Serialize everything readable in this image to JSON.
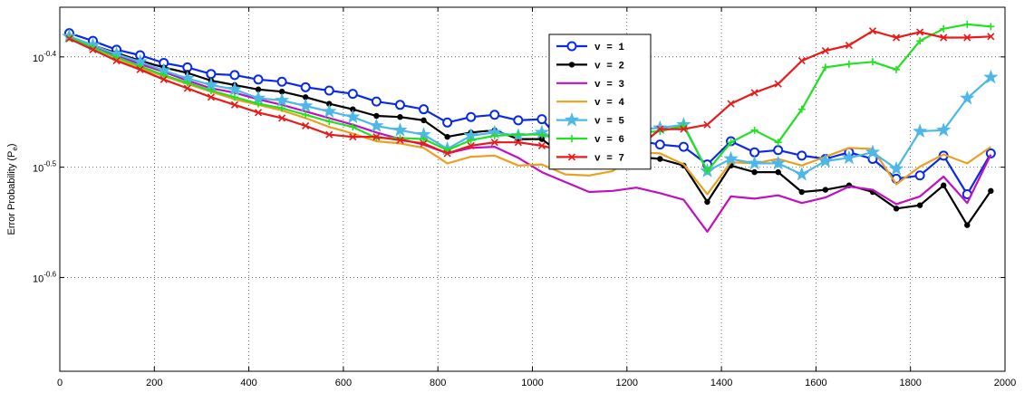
{
  "chart_data": {
    "type": "line",
    "title": "",
    "xlabel": "",
    "ylabel": "Error Probability (P",
    "ylabel_sub": "e",
    "ylabel_close": ")",
    "xlim": [
      0,
      2000
    ],
    "ylim_log10": [
      -0.685,
      -0.355
    ],
    "yscale": "log",
    "grid": true,
    "legend_position": "top-center",
    "x_ticks": [
      0,
      200,
      400,
      600,
      800,
      1000,
      1200,
      1400,
      1600,
      1800,
      2000
    ],
    "y_ticks": [
      {
        "base": "10",
        "exp": "-0.4",
        "log10": -0.4
      },
      {
        "base": "10",
        "exp": "-0.5",
        "log10": -0.5
      },
      {
        "base": "10",
        "exp": "-0.6",
        "log10": -0.6
      }
    ],
    "x": [
      20,
      70,
      120,
      170,
      220,
      270,
      320,
      370,
      420,
      470,
      520,
      570,
      620,
      670,
      720,
      770,
      820,
      870,
      920,
      970,
      1020,
      1070,
      1120,
      1170,
      1220,
      1270,
      1320,
      1370,
      1420,
      1470,
      1520,
      1570,
      1620,
      1670,
      1720,
      1770,
      1820,
      1870,
      1920,
      1970
    ],
    "series": [
      {
        "name": "v = 1",
        "color": "#0a2ae6",
        "marker": "circle",
        "values": [
          -0.3785,
          -0.3855,
          -0.3935,
          -0.3985,
          -0.4055,
          -0.4095,
          -0.4155,
          -0.4165,
          -0.4205,
          -0.4225,
          -0.4275,
          -0.4305,
          -0.4335,
          -0.4405,
          -0.4435,
          -0.4475,
          -0.4595,
          -0.4545,
          -0.4525,
          -0.4575,
          -0.4565,
          -0.4805,
          -0.4825,
          -0.4775,
          -0.4755,
          -0.4795,
          -0.4815,
          -0.4975,
          -0.4765,
          -0.4865,
          -0.4845,
          -0.4895,
          -0.4925,
          -0.4865,
          -0.4925,
          -0.5105,
          -0.5075,
          -0.4895,
          -0.5245,
          -0.4875
        ]
      },
      {
        "name": "v = 2",
        "color": "#000000",
        "marker": "dot",
        "values": [
          -0.3815,
          -0.3895,
          -0.3965,
          -0.4035,
          -0.4095,
          -0.4145,
          -0.4215,
          -0.4255,
          -0.4295,
          -0.4315,
          -0.4365,
          -0.4425,
          -0.4475,
          -0.4535,
          -0.4545,
          -0.4575,
          -0.4725,
          -0.4685,
          -0.4665,
          -0.4745,
          -0.4745,
          -0.4905,
          -0.4915,
          -0.4925,
          -0.4905,
          -0.4925,
          -0.4985,
          -0.5315,
          -0.4985,
          -0.5045,
          -0.5045,
          -0.5225,
          -0.5205,
          -0.5165,
          -0.5225,
          -0.5375,
          -0.5345,
          -0.5165,
          -0.5525,
          -0.5215
        ]
      },
      {
        "name": "v = 3",
        "color": "#c010c0",
        "marker": "none",
        "values": [
          -0.3825,
          -0.3905,
          -0.3985,
          -0.4065,
          -0.4135,
          -0.4215,
          -0.4285,
          -0.4325,
          -0.4385,
          -0.4435,
          -0.4495,
          -0.4555,
          -0.4615,
          -0.4685,
          -0.4745,
          -0.4795,
          -0.4875,
          -0.4825,
          -0.4815,
          -0.4915,
          -0.5045,
          -0.5135,
          -0.5225,
          -0.5215,
          -0.5185,
          -0.5235,
          -0.5295,
          -0.5585,
          -0.5265,
          -0.5285,
          -0.5255,
          -0.5325,
          -0.5275,
          -0.5175,
          -0.5205,
          -0.5335,
          -0.5265,
          -0.5085,
          -0.5325,
          -0.4885
        ]
      },
      {
        "name": "v = 4",
        "color": "#eaa020",
        "marker": "none",
        "values": [
          -0.3825,
          -0.3935,
          -0.4025,
          -0.4105,
          -0.4175,
          -0.4245,
          -0.4315,
          -0.4385,
          -0.4435,
          -0.4485,
          -0.4555,
          -0.4635,
          -0.4695,
          -0.4765,
          -0.4785,
          -0.4825,
          -0.4965,
          -0.4905,
          -0.4895,
          -0.4985,
          -0.4975,
          -0.5065,
          -0.5075,
          -0.5035,
          -0.4865,
          -0.4875,
          -0.4975,
          -0.5245,
          -0.4955,
          -0.4965,
          -0.4925,
          -0.4985,
          -0.4905,
          -0.4825,
          -0.4835,
          -0.5155,
          -0.4995,
          -0.4885,
          -0.4965,
          -0.4815
        ]
      },
      {
        "name": "v = 5",
        "color": "#4db8e8",
        "marker": "star",
        "values": [
          -0.3815,
          -0.3895,
          -0.3975,
          -0.4045,
          -0.4125,
          -0.4195,
          -0.4255,
          -0.4295,
          -0.4375,
          -0.4395,
          -0.4445,
          -0.4495,
          -0.4545,
          -0.4625,
          -0.4665,
          -0.4705,
          -0.4835,
          -0.4715,
          -0.4685,
          -0.4715,
          -0.4685,
          -0.4775,
          -0.4745,
          -0.4705,
          -0.4655,
          -0.4645,
          -0.4615,
          -0.5035,
          -0.4925,
          -0.4965,
          -0.4965,
          -0.5065,
          -0.4945,
          -0.4915,
          -0.4865,
          -0.5015,
          -0.4675,
          -0.4665,
          -0.4375,
          -0.4185
        ]
      },
      {
        "name": "v = 6",
        "color": "#22e022",
        "marker": "plus",
        "values": [
          -0.3825,
          -0.3915,
          -0.4005,
          -0.4085,
          -0.4165,
          -0.4235,
          -0.4305,
          -0.4365,
          -0.4425,
          -0.4465,
          -0.4525,
          -0.4585,
          -0.4635,
          -0.4735,
          -0.4735,
          -0.4745,
          -0.4845,
          -0.4755,
          -0.4715,
          -0.4705,
          -0.4705,
          -0.4765,
          -0.4745,
          -0.4675,
          -0.4685,
          -0.4675,
          -0.4625,
          -0.5035,
          -0.4775,
          -0.4665,
          -0.4775,
          -0.4475,
          -0.4095,
          -0.4065,
          -0.4045,
          -0.4115,
          -0.3855,
          -0.3745,
          -0.3705,
          -0.3725
        ]
      },
      {
        "name": "v = 7",
        "color": "#ea1a1a",
        "marker": "x",
        "values": [
          -0.3835,
          -0.3935,
          -0.4035,
          -0.4115,
          -0.4205,
          -0.4285,
          -0.4365,
          -0.4435,
          -0.4505,
          -0.4555,
          -0.4625,
          -0.4705,
          -0.4725,
          -0.4725,
          -0.4755,
          -0.4785,
          -0.4875,
          -0.4805,
          -0.4775,
          -0.4775,
          -0.4805,
          -0.4855,
          -0.4925,
          -0.4865,
          -0.4835,
          -0.4655,
          -0.4655,
          -0.4615,
          -0.4425,
          -0.4325,
          -0.4245,
          -0.4035,
          -0.3945,
          -0.3895,
          -0.3765,
          -0.3825,
          -0.3775,
          -0.3825,
          -0.3825,
          -0.3815
        ]
      }
    ]
  }
}
